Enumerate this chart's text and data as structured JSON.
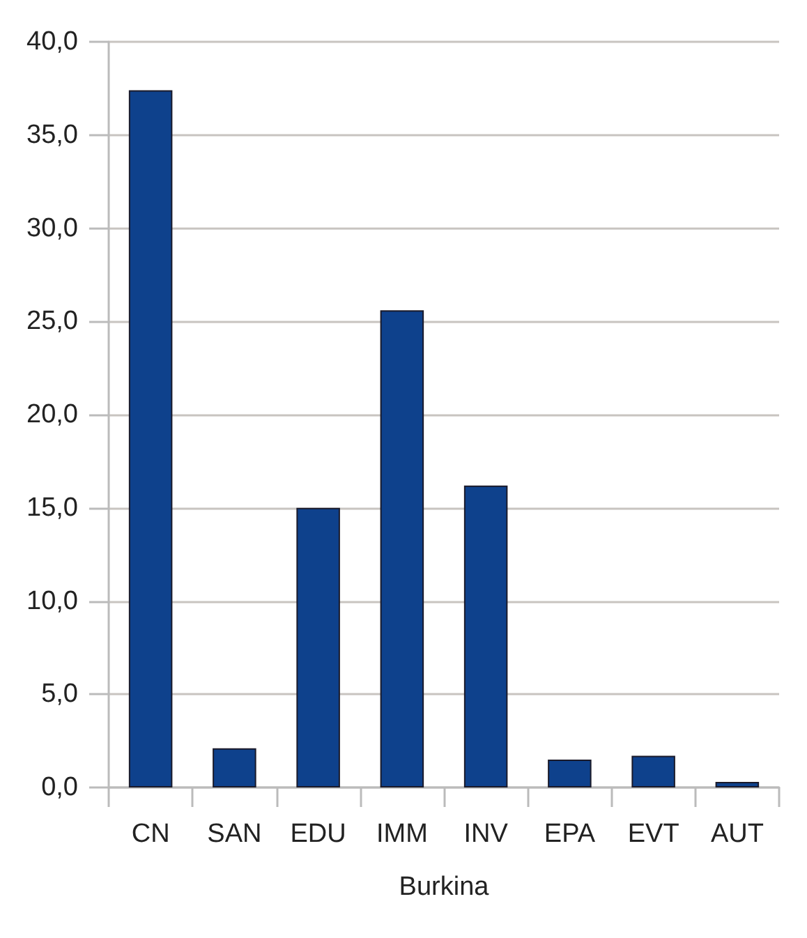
{
  "chart_data": {
    "type": "bar",
    "xlabel": "Burkina",
    "categories": [
      "CN",
      "SAN",
      "EDU",
      "IMM",
      "INV",
      "EPA",
      "EVT",
      "AUT"
    ],
    "values": [
      37.4,
      2.1,
      15.0,
      25.6,
      16.2,
      1.5,
      1.7,
      0.3
    ],
    "color": "#0e418c",
    "ylim": [
      0,
      40
    ],
    "yticks": [
      {
        "value": 0,
        "label": "0,0"
      },
      {
        "value": 5,
        "label": "5,0"
      },
      {
        "value": 10,
        "label": "10,0"
      },
      {
        "value": 15,
        "label": "15,0"
      },
      {
        "value": 20,
        "label": "20,0"
      },
      {
        "value": 25,
        "label": "25,0"
      },
      {
        "value": 30,
        "label": "30,0"
      },
      {
        "value": 35,
        "label": "35,0"
      },
      {
        "value": 40,
        "label": "40,0"
      }
    ],
    "grid": "y"
  }
}
